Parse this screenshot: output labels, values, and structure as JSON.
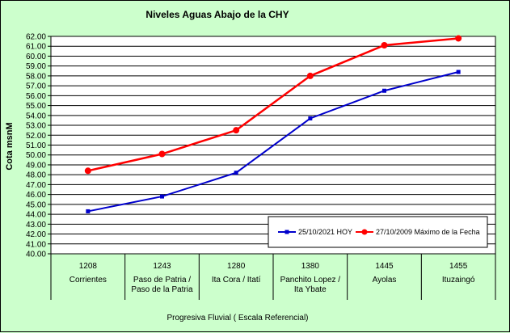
{
  "chart_data": {
    "type": "line",
    "title": "Niveles Aguas Abajo de la CHY",
    "ylabel": "Cota msnM",
    "xlabel": "Progresiva Fluvial ( Escala Referencial)",
    "ylim": [
      40.0,
      62.0
    ],
    "ytick_step": 1.0,
    "grid": true,
    "legend_position": "bottom-right",
    "categories": [
      {
        "code": "1208",
        "name": [
          "Corrientes"
        ]
      },
      {
        "code": "1243",
        "name": [
          "Paso de Patria /",
          "Paso de la Patria"
        ]
      },
      {
        "code": "1280",
        "name": [
          "Ita Cora / Itatí"
        ]
      },
      {
        "code": "1380",
        "name": [
          "Panchito Lopez /",
          "Ita Ybate"
        ]
      },
      {
        "code": "1445",
        "name": [
          "Ayolas"
        ]
      },
      {
        "code": "1455",
        "name": [
          "Ituzaingó"
        ]
      }
    ],
    "series": [
      {
        "name": "25/10/2021 HOY",
        "color": "#0000cc",
        "marker": "square",
        "values": [
          44.3,
          45.8,
          48.2,
          53.7,
          56.5,
          58.4
        ]
      },
      {
        "name": "27/10/2009 Máximo de la Fecha",
        "color": "#ff0000",
        "marker": "circle",
        "values": [
          48.4,
          50.1,
          52.5,
          58.0,
          61.1,
          61.8
        ]
      }
    ],
    "colors": {
      "background": "#ccffcc",
      "plot_area": "#ffffff"
    }
  }
}
